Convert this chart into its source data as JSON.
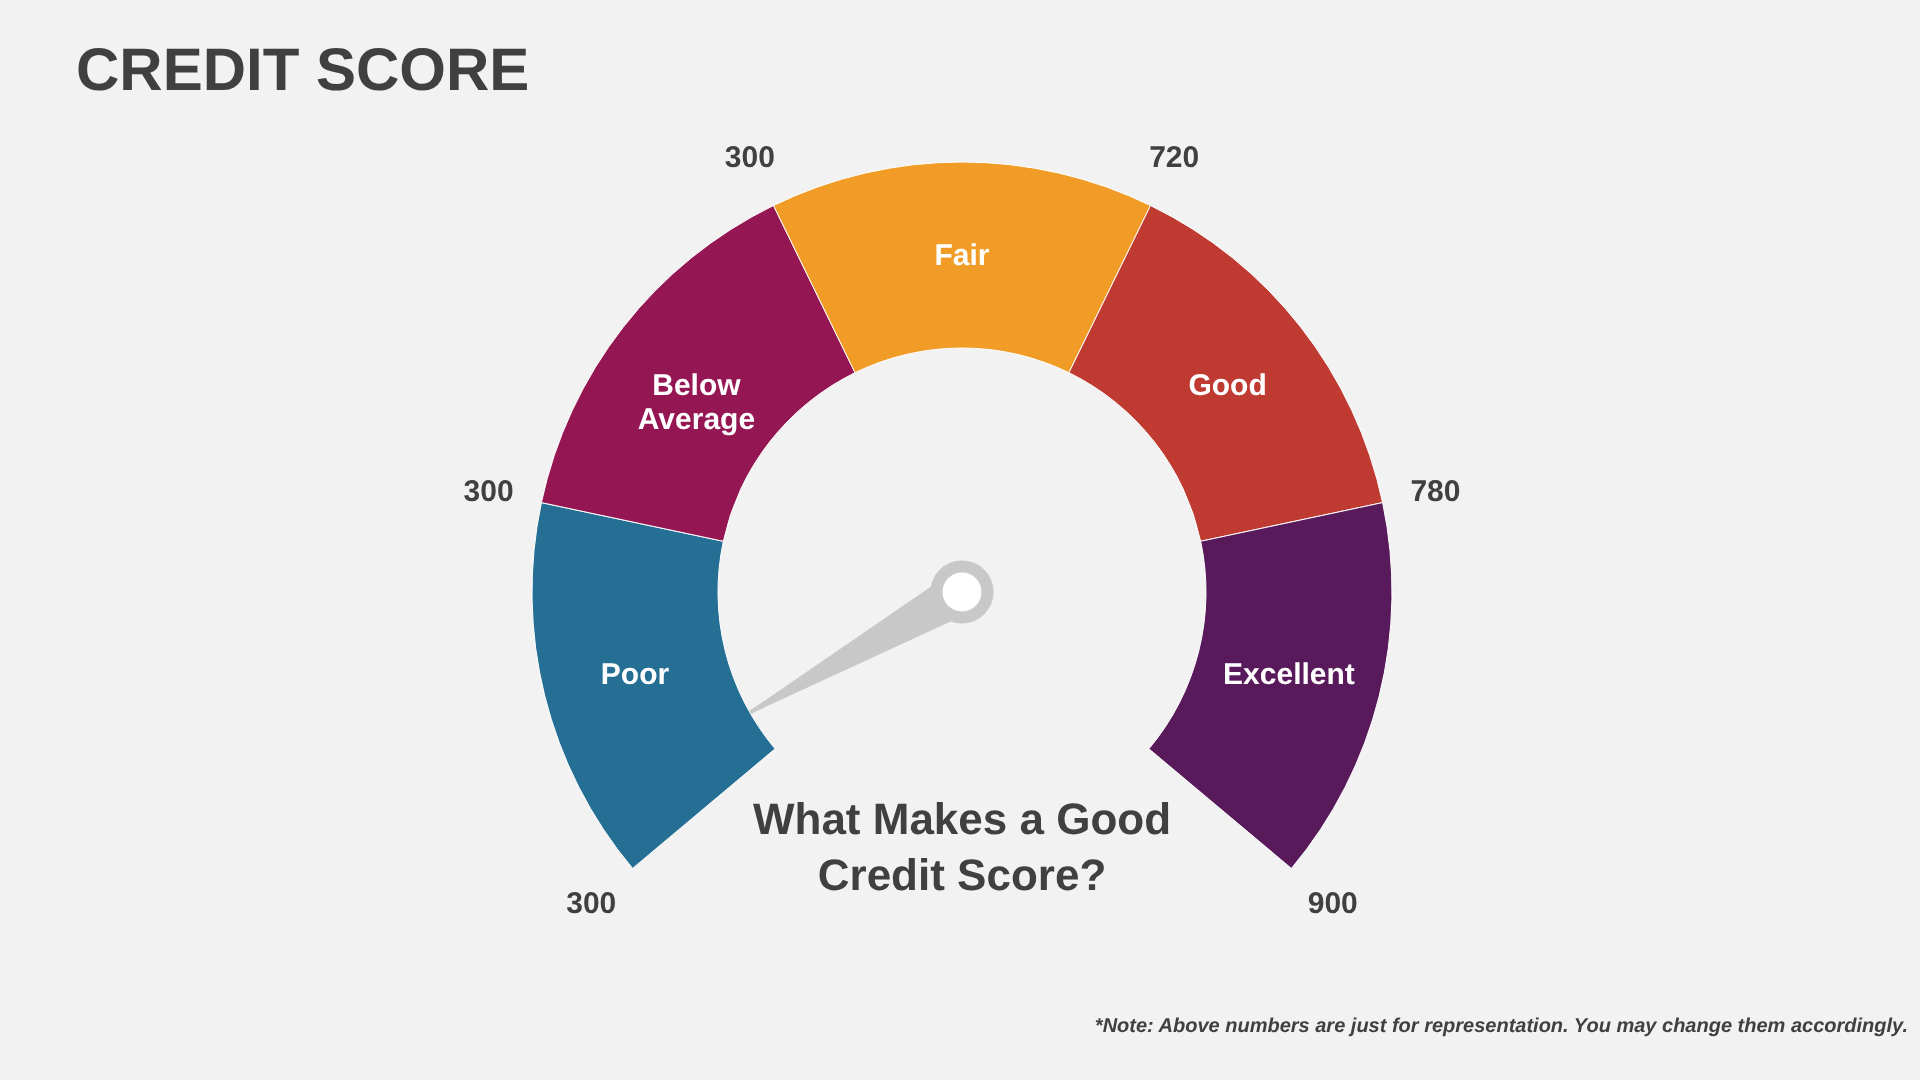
{
  "chart_data": {
    "type": "donut",
    "title": "CREDIT SCORE",
    "subtitle": "What Makes a Good\nCredit Score?",
    "categories": [
      "Poor",
      "Below Average",
      "Fair",
      "Good",
      "Excellent"
    ],
    "values": [
      20,
      20,
      20,
      20,
      20
    ],
    "colors": [
      "#256f94",
      "#941652",
      "#f09c26",
      "#bf3a30",
      "#581a5b"
    ],
    "needle": "Poor",
    "annotations": [
      "300",
      "300",
      "300",
      "720",
      "780",
      "900",
      "*Note: Above numbers are just for representation. You may change them accordingly."
    ]
  }
}
